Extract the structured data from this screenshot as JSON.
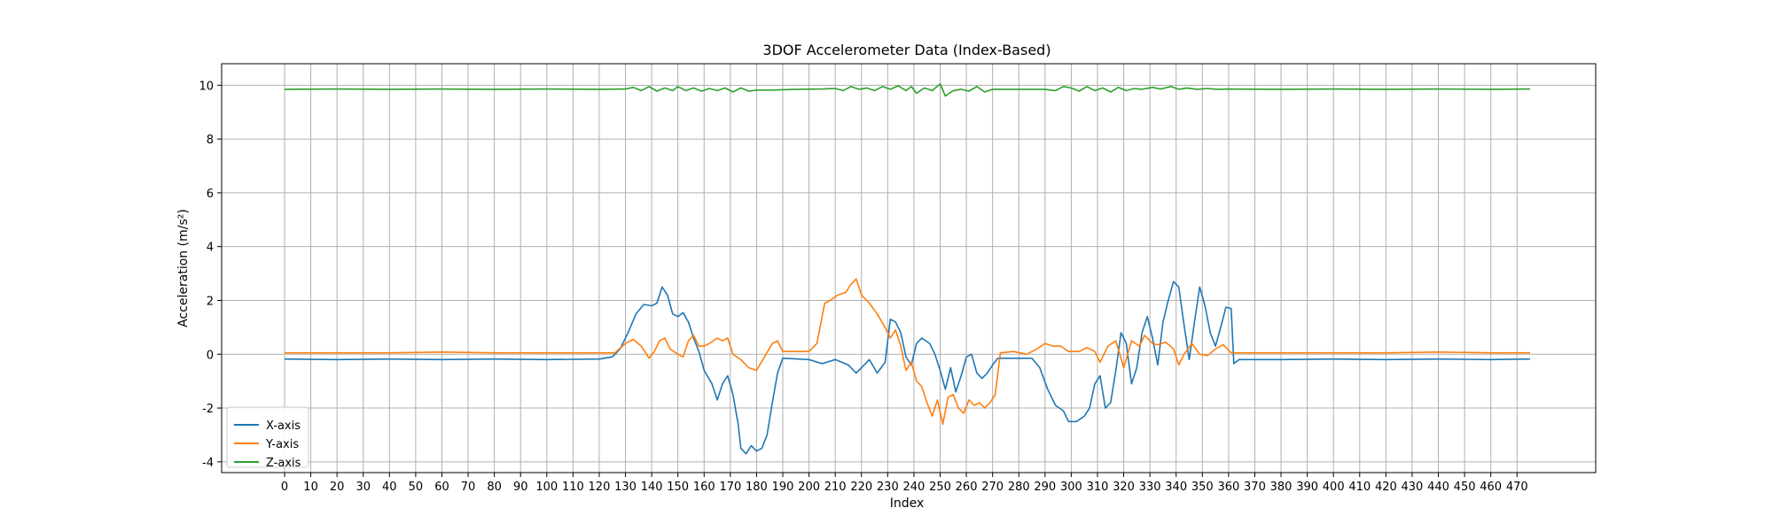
{
  "chart_data": {
    "type": "line",
    "title": "3DOF Accelerometer Data (Index-Based)",
    "xlabel": "Index",
    "ylabel": "Acceleration (m/s²)",
    "xlim": [
      -24,
      500
    ],
    "ylim": [
      -4.4,
      10.8
    ],
    "grid": true,
    "legend": "lower-left",
    "xticks": [
      0,
      10,
      20,
      30,
      40,
      50,
      60,
      70,
      80,
      90,
      100,
      110,
      120,
      130,
      140,
      150,
      160,
      170,
      180,
      190,
      200,
      210,
      220,
      230,
      240,
      250,
      260,
      270,
      280,
      290,
      300,
      310,
      320,
      330,
      340,
      350,
      360,
      370,
      380,
      390,
      400,
      410,
      420,
      430,
      440,
      450,
      460,
      470
    ],
    "yticks": [
      -4,
      -2,
      0,
      2,
      4,
      6,
      8,
      10
    ],
    "series": [
      {
        "name": "X-axis",
        "color": "#1f77b4",
        "points": [
          [
            0,
            -0.18
          ],
          [
            20,
            -0.2
          ],
          [
            40,
            -0.18
          ],
          [
            60,
            -0.2
          ],
          [
            80,
            -0.18
          ],
          [
            100,
            -0.2
          ],
          [
            120,
            -0.18
          ],
          [
            125,
            -0.1
          ],
          [
            128,
            0.2
          ],
          [
            131,
            0.8
          ],
          [
            134,
            1.5
          ],
          [
            137,
            1.85
          ],
          [
            140,
            1.8
          ],
          [
            142,
            1.9
          ],
          [
            144,
            2.5
          ],
          [
            146,
            2.2
          ],
          [
            148,
            1.5
          ],
          [
            150,
            1.4
          ],
          [
            152,
            1.55
          ],
          [
            154,
            1.2
          ],
          [
            156,
            0.6
          ],
          [
            158,
            0.1
          ],
          [
            160,
            -0.6
          ],
          [
            163,
            -1.1
          ],
          [
            165,
            -1.7
          ],
          [
            167,
            -1.1
          ],
          [
            169,
            -0.8
          ],
          [
            171,
            -1.5
          ],
          [
            173,
            -2.6
          ],
          [
            174,
            -3.5
          ],
          [
            176,
            -3.7
          ],
          [
            178,
            -3.4
          ],
          [
            180,
            -3.6
          ],
          [
            182,
            -3.5
          ],
          [
            184,
            -3.0
          ],
          [
            186,
            -1.8
          ],
          [
            188,
            -0.7
          ],
          [
            190,
            -0.15
          ],
          [
            200,
            -0.2
          ],
          [
            205,
            -0.35
          ],
          [
            210,
            -0.2
          ],
          [
            215,
            -0.4
          ],
          [
            218,
            -0.7
          ],
          [
            220,
            -0.5
          ],
          [
            223,
            -0.2
          ],
          [
            226,
            -0.7
          ],
          [
            229,
            -0.3
          ],
          [
            231,
            1.3
          ],
          [
            233,
            1.2
          ],
          [
            235,
            0.8
          ],
          [
            237,
            -0.1
          ],
          [
            239,
            -0.4
          ],
          [
            241,
            0.4
          ],
          [
            243,
            0.6
          ],
          [
            246,
            0.4
          ],
          [
            248,
            0.0
          ],
          [
            250,
            -0.6
          ],
          [
            252,
            -1.3
          ],
          [
            254,
            -0.5
          ],
          [
            256,
            -1.4
          ],
          [
            258,
            -0.8
          ],
          [
            260,
            -0.1
          ],
          [
            262,
            0.0
          ],
          [
            264,
            -0.7
          ],
          [
            266,
            -0.9
          ],
          [
            268,
            -0.7
          ],
          [
            270,
            -0.4
          ],
          [
            272,
            -0.15
          ],
          [
            285,
            -0.15
          ],
          [
            288,
            -0.5
          ],
          [
            291,
            -1.3
          ],
          [
            294,
            -1.9
          ],
          [
            297,
            -2.1
          ],
          [
            299,
            -2.5
          ],
          [
            302,
            -2.5
          ],
          [
            305,
            -2.3
          ],
          [
            307,
            -2.0
          ],
          [
            309,
            -1.1
          ],
          [
            311,
            -0.8
          ],
          [
            313,
            -2.0
          ],
          [
            315,
            -1.8
          ],
          [
            317,
            -0.6
          ],
          [
            319,
            0.8
          ],
          [
            321,
            0.4
          ],
          [
            323,
            -1.1
          ],
          [
            325,
            -0.5
          ],
          [
            327,
            0.8
          ],
          [
            329,
            1.4
          ],
          [
            331,
            0.6
          ],
          [
            333,
            -0.4
          ],
          [
            335,
            1.2
          ],
          [
            337,
            2.0
          ],
          [
            339,
            2.7
          ],
          [
            341,
            2.5
          ],
          [
            343,
            1.1
          ],
          [
            345,
            -0.2
          ],
          [
            347,
            1.2
          ],
          [
            349,
            2.5
          ],
          [
            351,
            1.8
          ],
          [
            353,
            0.8
          ],
          [
            355,
            0.3
          ],
          [
            357,
            1.0
          ],
          [
            359,
            1.75
          ],
          [
            361,
            1.7
          ],
          [
            362,
            -0.35
          ],
          [
            364,
            -0.2
          ],
          [
            380,
            -0.2
          ],
          [
            400,
            -0.18
          ],
          [
            420,
            -0.2
          ],
          [
            440,
            -0.18
          ],
          [
            460,
            -0.2
          ],
          [
            475,
            -0.18
          ]
        ]
      },
      {
        "name": "Y-axis",
        "color": "#ff7f0e",
        "points": [
          [
            0,
            0.05
          ],
          [
            20,
            0.05
          ],
          [
            40,
            0.05
          ],
          [
            60,
            0.08
          ],
          [
            80,
            0.05
          ],
          [
            100,
            0.05
          ],
          [
            120,
            0.05
          ],
          [
            126,
            0.05
          ],
          [
            130,
            0.4
          ],
          [
            133,
            0.55
          ],
          [
            136,
            0.3
          ],
          [
            139,
            -0.15
          ],
          [
            141,
            0.1
          ],
          [
            143,
            0.5
          ],
          [
            145,
            0.6
          ],
          [
            147,
            0.2
          ],
          [
            150,
            0.0
          ],
          [
            152,
            -0.1
          ],
          [
            154,
            0.5
          ],
          [
            156,
            0.7
          ],
          [
            158,
            0.3
          ],
          [
            160,
            0.3
          ],
          [
            162,
            0.4
          ],
          [
            165,
            0.6
          ],
          [
            167,
            0.5
          ],
          [
            169,
            0.6
          ],
          [
            171,
            0.0
          ],
          [
            174,
            -0.2
          ],
          [
            177,
            -0.5
          ],
          [
            180,
            -0.6
          ],
          [
            183,
            -0.1
          ],
          [
            186,
            0.4
          ],
          [
            188,
            0.5
          ],
          [
            190,
            0.1
          ],
          [
            200,
            0.1
          ],
          [
            203,
            0.4
          ],
          [
            206,
            1.9
          ],
          [
            208,
            2.0
          ],
          [
            211,
            2.2
          ],
          [
            214,
            2.3
          ],
          [
            216,
            2.6
          ],
          [
            218,
            2.8
          ],
          [
            220,
            2.2
          ],
          [
            223,
            1.9
          ],
          [
            226,
            1.5
          ],
          [
            229,
            1.0
          ],
          [
            231,
            0.6
          ],
          [
            233,
            0.9
          ],
          [
            235,
            0.3
          ],
          [
            237,
            -0.6
          ],
          [
            239,
            -0.3
          ],
          [
            241,
            -1.0
          ],
          [
            243,
            -1.2
          ],
          [
            245,
            -1.8
          ],
          [
            247,
            -2.3
          ],
          [
            249,
            -1.7
          ],
          [
            251,
            -2.6
          ],
          [
            253,
            -1.6
          ],
          [
            255,
            -1.5
          ],
          [
            257,
            -2.0
          ],
          [
            259,
            -2.2
          ],
          [
            261,
            -1.7
          ],
          [
            263,
            -1.9
          ],
          [
            265,
            -1.8
          ],
          [
            267,
            -2.0
          ],
          [
            269,
            -1.8
          ],
          [
            271,
            -1.5
          ],
          [
            273,
            0.05
          ],
          [
            278,
            0.1
          ],
          [
            283,
            0.0
          ],
          [
            287,
            0.2
          ],
          [
            290,
            0.4
          ],
          [
            293,
            0.3
          ],
          [
            296,
            0.3
          ],
          [
            299,
            0.1
          ],
          [
            303,
            0.1
          ],
          [
            306,
            0.25
          ],
          [
            309,
            0.1
          ],
          [
            311,
            -0.3
          ],
          [
            314,
            0.3
          ],
          [
            317,
            0.5
          ],
          [
            320,
            -0.5
          ],
          [
            323,
            0.5
          ],
          [
            326,
            0.3
          ],
          [
            328,
            0.7
          ],
          [
            331,
            0.4
          ],
          [
            333,
            0.35
          ],
          [
            336,
            0.45
          ],
          [
            339,
            0.2
          ],
          [
            341,
            -0.4
          ],
          [
            343,
            0.0
          ],
          [
            346,
            0.4
          ],
          [
            349,
            0.0
          ],
          [
            352,
            -0.05
          ],
          [
            355,
            0.2
          ],
          [
            358,
            0.35
          ],
          [
            361,
            0.05
          ],
          [
            380,
            0.05
          ],
          [
            400,
            0.05
          ],
          [
            420,
            0.05
          ],
          [
            440,
            0.08
          ],
          [
            460,
            0.05
          ],
          [
            475,
            0.05
          ]
        ]
      },
      {
        "name": "Z-axis",
        "color": "#2ca02c",
        "points": [
          [
            0,
            9.85
          ],
          [
            20,
            9.86
          ],
          [
            40,
            9.85
          ],
          [
            60,
            9.86
          ],
          [
            80,
            9.85
          ],
          [
            100,
            9.86
          ],
          [
            120,
            9.85
          ],
          [
            130,
            9.86
          ],
          [
            133,
            9.92
          ],
          [
            136,
            9.8
          ],
          [
            139,
            9.95
          ],
          [
            142,
            9.78
          ],
          [
            145,
            9.9
          ],
          [
            148,
            9.8
          ],
          [
            150,
            9.95
          ],
          [
            153,
            9.8
          ],
          [
            156,
            9.9
          ],
          [
            159,
            9.78
          ],
          [
            162,
            9.88
          ],
          [
            165,
            9.8
          ],
          [
            168,
            9.9
          ],
          [
            171,
            9.75
          ],
          [
            174,
            9.9
          ],
          [
            177,
            9.78
          ],
          [
            180,
            9.82
          ],
          [
            186,
            9.82
          ],
          [
            195,
            9.85
          ],
          [
            205,
            9.86
          ],
          [
            210,
            9.88
          ],
          [
            213,
            9.8
          ],
          [
            216,
            9.95
          ],
          [
            219,
            9.85
          ],
          [
            222,
            9.9
          ],
          [
            225,
            9.8
          ],
          [
            228,
            9.95
          ],
          [
            231,
            9.85
          ],
          [
            234,
            9.98
          ],
          [
            237,
            9.8
          ],
          [
            239,
            9.95
          ],
          [
            241,
            9.7
          ],
          [
            244,
            9.9
          ],
          [
            247,
            9.8
          ],
          [
            250,
            10.05
          ],
          [
            252,
            9.6
          ],
          [
            255,
            9.8
          ],
          [
            258,
            9.85
          ],
          [
            261,
            9.78
          ],
          [
            264,
            9.95
          ],
          [
            267,
            9.75
          ],
          [
            270,
            9.85
          ],
          [
            280,
            9.85
          ],
          [
            290,
            9.85
          ],
          [
            294,
            9.8
          ],
          [
            297,
            9.95
          ],
          [
            300,
            9.9
          ],
          [
            303,
            9.78
          ],
          [
            306,
            9.95
          ],
          [
            309,
            9.8
          ],
          [
            312,
            9.9
          ],
          [
            315,
            9.75
          ],
          [
            318,
            9.92
          ],
          [
            321,
            9.8
          ],
          [
            324,
            9.88
          ],
          [
            327,
            9.85
          ],
          [
            331,
            9.92
          ],
          [
            334,
            9.86
          ],
          [
            338,
            9.95
          ],
          [
            341,
            9.85
          ],
          [
            344,
            9.9
          ],
          [
            348,
            9.85
          ],
          [
            352,
            9.88
          ],
          [
            356,
            9.85
          ],
          [
            360,
            9.86
          ],
          [
            380,
            9.85
          ],
          [
            400,
            9.86
          ],
          [
            420,
            9.85
          ],
          [
            440,
            9.86
          ],
          [
            460,
            9.85
          ],
          [
            475,
            9.86
          ]
        ]
      }
    ]
  }
}
